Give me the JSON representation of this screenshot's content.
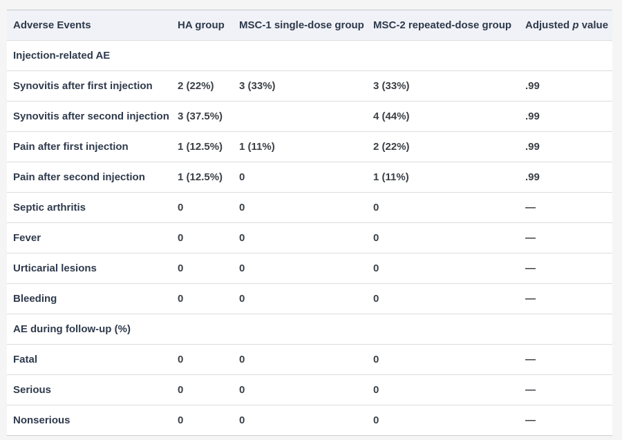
{
  "table": {
    "header": {
      "col1": "Adverse Events",
      "col2": "HA group",
      "col3": "MSC-1 single-dose group",
      "col4": "MSC-2 repeated-dose group",
      "p_prefix": "Adjusted",
      "p_italic": "p",
      "p_suffix": "value"
    },
    "rows": [
      {
        "type": "section",
        "label": "Injection-related AE",
        "ha": "",
        "msc1": "",
        "msc2": "",
        "p": ""
      },
      {
        "type": "data",
        "label": "Synovitis after first injection",
        "ha": "2 (22%)",
        "msc1": "3 (33%)",
        "msc2": "3 (33%)",
        "p": ".99"
      },
      {
        "type": "data",
        "label": "Synovitis after second injection",
        "ha": "3 (37.5%)",
        "msc1": "",
        "msc2": "4 (44%)",
        "p": ".99"
      },
      {
        "type": "data",
        "label": "Pain after first injection",
        "ha": "1 (12.5%)",
        "msc1": "1 (11%)",
        "msc2": "2 (22%)",
        "p": ".99"
      },
      {
        "type": "data",
        "label": "Pain after second injection",
        "ha": "1 (12.5%)",
        "msc1": "0",
        "msc2": "1 (11%)",
        "p": ".99"
      },
      {
        "type": "data",
        "label": "Septic arthritis",
        "ha": "0",
        "msc1": "0",
        "msc2": "0",
        "p": "—"
      },
      {
        "type": "data",
        "label": "Fever",
        "ha": "0",
        "msc1": "0",
        "msc2": "0",
        "p": "—"
      },
      {
        "type": "data",
        "label": "Urticarial lesions",
        "ha": "0",
        "msc1": "0",
        "msc2": "0",
        "p": "—"
      },
      {
        "type": "data",
        "label": "Bleeding",
        "ha": "0",
        "msc1": "0",
        "msc2": "0",
        "p": "—"
      },
      {
        "type": "section",
        "label": "AE during follow-up (%)",
        "ha": "",
        "msc1": "",
        "msc2": "",
        "p": ""
      },
      {
        "type": "data",
        "label": "Fatal",
        "ha": "0",
        "msc1": "0",
        "msc2": "0",
        "p": "—"
      },
      {
        "type": "data",
        "label": "Serious",
        "ha": "0",
        "msc1": "0",
        "msc2": "0",
        "p": "—"
      },
      {
        "type": "data",
        "label": "Nonserious",
        "ha": "0",
        "msc1": "0",
        "msc2": "0",
        "p": "—"
      }
    ]
  },
  "colors": {
    "page_bg": "#f5f5f6",
    "table_bg": "#ffffff",
    "header_bg": "#f0f2f7",
    "separator": "#d9dcdf",
    "top_border": "#c4c8cd",
    "heading_text": "#2f3a4c",
    "value_text": "#3a3f45"
  }
}
